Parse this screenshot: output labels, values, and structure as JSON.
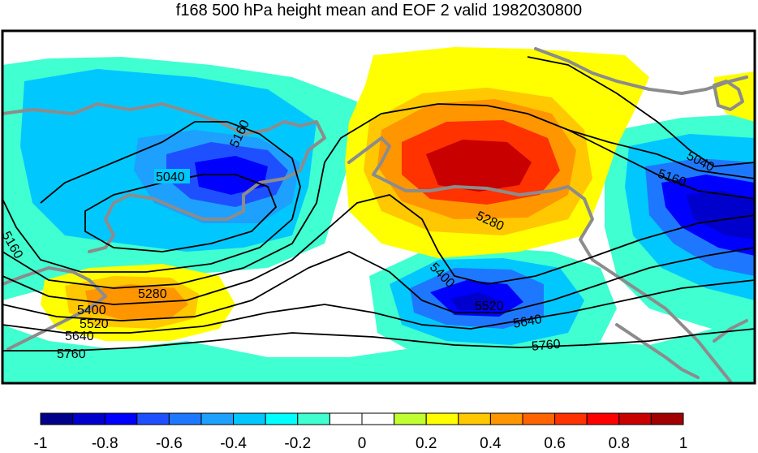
{
  "title": "f168 500 hPa height mean and EOF 2 valid 1982030800",
  "contour_labels": [
    "5040",
    "5160",
    "5280",
    "5400",
    "5520",
    "5640",
    "5760",
    "5040",
    "5160",
    "5280",
    "5400",
    "5520",
    "5640",
    "5760",
    "5160"
  ],
  "colorbar": {
    "ticks": [
      "-1",
      "-0.8",
      "-0.6",
      "-0.4",
      "-0.2",
      "0",
      "0.2",
      "0.4",
      "0.6",
      "0.8",
      "1"
    ],
    "colors": [
      "#00008b",
      "#0000cd",
      "#0000ff",
      "#1e50ff",
      "#1e78ff",
      "#1ea0ff",
      "#00c8ff",
      "#00ffff",
      "#40ffd0",
      "#ffffff",
      "#ffffff",
      "#c0ff30",
      "#ffff00",
      "#ffc800",
      "#ff9600",
      "#ff6400",
      "#ff3200",
      "#ff0000",
      "#c80000",
      "#a00000"
    ]
  },
  "fill_colors": {
    "cyan": "#40ffd0",
    "lightblue": "#00c8ff",
    "blue": "#1e78ff",
    "darkblue": "#0000ff",
    "navy": "#0000cd",
    "yellow": "#ffff00",
    "orange": "#ff9600",
    "red": "#ff3200",
    "darkred": "#c80000",
    "coast": "#8c8c8c"
  }
}
